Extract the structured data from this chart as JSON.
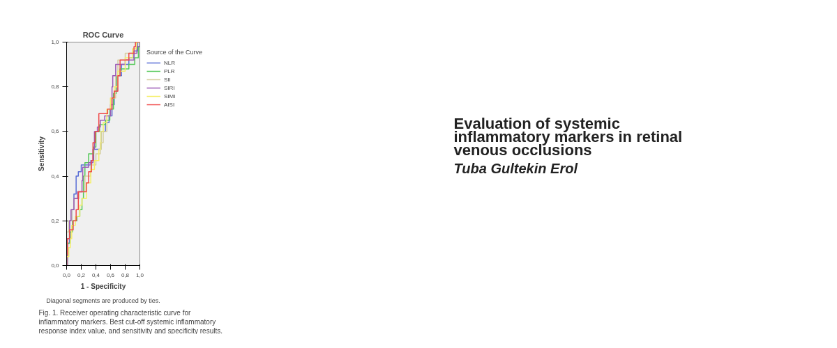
{
  "chart_data": {
    "type": "step",
    "title": "ROC Curve",
    "xlabel": "1 - Specificity",
    "ylabel": "Sensitivity",
    "legend_title": "Source of the Curve",
    "annotations": [
      "Diagonal segments are produced by ties.",
      "Fig. 1. Receiver operating characteristic curve for inflammatory markers. Best cut-off systemic inflammatory response index value, and sensitivity and specificity results.",
      "Evaluation of systemic inflammatory markers in retinal venous occlusions",
      "Tuba Gultekin Erol"
    ],
    "xlim": [
      0,
      1
    ],
    "ylim": [
      0,
      1
    ],
    "xticks": [
      {
        "value": 0,
        "label": "0,0"
      },
      {
        "value": 0.2,
        "label": "0,2"
      },
      {
        "value": 0.4,
        "label": "0,4"
      },
      {
        "value": 0.6,
        "label": "0,6"
      },
      {
        "value": 0.8,
        "label": "0,8"
      },
      {
        "value": 1,
        "label": "1,0"
      }
    ],
    "yticks": [
      {
        "value": 0,
        "label": "0,0"
      },
      {
        "value": 0.2,
        "label": "0,2"
      },
      {
        "value": 0.4,
        "label": "0,4"
      },
      {
        "value": 0.6,
        "label": "0,6"
      },
      {
        "value": 0.8,
        "label": "0,8"
      },
      {
        "value": 1,
        "label": "1,0"
      }
    ],
    "grid": false,
    "legend": "right",
    "marker": "none",
    "line_style": "solid",
    "series": [
      {
        "name": "NLR",
        "color": "#5b6fd6",
        "x": [
          0,
          0.01,
          0.04,
          0.07,
          0.1,
          0.13,
          0.16,
          0.2,
          0.28,
          0.33,
          0.37,
          0.43,
          0.47,
          0.53,
          0.58,
          0.62,
          0.65,
          0.69,
          0.75,
          0.85,
          0.92,
          0.97,
          1
        ],
        "values": [
          0,
          0.1,
          0.2,
          0.25,
          0.32,
          0.4,
          0.42,
          0.45,
          0.45,
          0.47,
          0.52,
          0.52,
          0.6,
          0.64,
          0.67,
          0.72,
          0.78,
          0.85,
          0.9,
          0.93,
          0.96,
          1,
          1
        ]
      },
      {
        "name": "PLR",
        "color": "#55c95a",
        "x": [
          0,
          0.01,
          0.05,
          0.08,
          0.14,
          0.18,
          0.21,
          0.23,
          0.25,
          0.3,
          0.37,
          0.4,
          0.45,
          0.53,
          0.59,
          0.64,
          0.68,
          0.73,
          0.85,
          0.93,
          0.98,
          1
        ],
        "values": [
          0,
          0.1,
          0.15,
          0.2,
          0.22,
          0.25,
          0.3,
          0.4,
          0.46,
          0.5,
          0.53,
          0.6,
          0.63,
          0.65,
          0.7,
          0.77,
          0.85,
          0.88,
          0.9,
          0.93,
          0.98,
          1
        ]
      },
      {
        "name": "SII",
        "color": "#d6cfa0",
        "x": [
          0,
          0,
          0.03,
          0.07,
          0.1,
          0.17,
          0.25,
          0.33,
          0.4,
          0.46,
          0.5,
          0.55,
          0.6,
          0.67,
          0.7,
          0.8,
          0.9,
          0.96,
          1
        ],
        "values": [
          0,
          0.15,
          0.2,
          0.25,
          0.3,
          0.33,
          0.4,
          0.45,
          0.5,
          0.55,
          0.6,
          0.67,
          0.75,
          0.85,
          0.92,
          0.95,
          0.97,
          1,
          1
        ]
      },
      {
        "name": "SIRI",
        "color": "#9b59b6",
        "x": [
          0,
          0.01,
          0.04,
          0.06,
          0.1,
          0.15,
          0.21,
          0.22,
          0.3,
          0.36,
          0.38,
          0.42,
          0.46,
          0.52,
          0.6,
          0.62,
          0.63,
          0.67,
          0.75,
          0.8,
          0.87,
          0.92,
          0.96,
          1
        ],
        "values": [
          0,
          0.12,
          0.2,
          0.25,
          0.3,
          0.33,
          0.38,
          0.44,
          0.46,
          0.52,
          0.6,
          0.62,
          0.65,
          0.67,
          0.72,
          0.8,
          0.85,
          0.9,
          0.9,
          0.92,
          0.92,
          0.95,
          0.98,
          1
        ]
      },
      {
        "name": "SIMI",
        "color": "#f5ef6a",
        "x": [
          0,
          0,
          0.03,
          0.05,
          0.07,
          0.12,
          0.18,
          0.21,
          0.27,
          0.33,
          0.38,
          0.44,
          0.47,
          0.5,
          0.55,
          0.6,
          0.65,
          0.7,
          0.8,
          0.9,
          0.95,
          1
        ],
        "values": [
          0,
          0.04,
          0.08,
          0.12,
          0.18,
          0.22,
          0.27,
          0.3,
          0.37,
          0.43,
          0.47,
          0.52,
          0.6,
          0.64,
          0.7,
          0.75,
          0.8,
          0.87,
          0.93,
          0.97,
          1,
          1
        ]
      },
      {
        "name": "AISI",
        "color": "#f04848",
        "x": [
          0,
          0,
          0.01,
          0.04,
          0.09,
          0.13,
          0.16,
          0.23,
          0.27,
          0.3,
          0.34,
          0.36,
          0.39,
          0.44,
          0.52,
          0.56,
          0.62,
          0.65,
          0.7,
          0.73,
          0.85,
          0.92,
          0.94,
          1
        ],
        "values": [
          0,
          0.05,
          0.12,
          0.16,
          0.2,
          0.25,
          0.33,
          0.33,
          0.37,
          0.42,
          0.47,
          0.55,
          0.6,
          0.68,
          0.68,
          0.7,
          0.75,
          0.78,
          0.85,
          0.92,
          0.95,
          0.98,
          1,
          1
        ]
      }
    ]
  }
}
